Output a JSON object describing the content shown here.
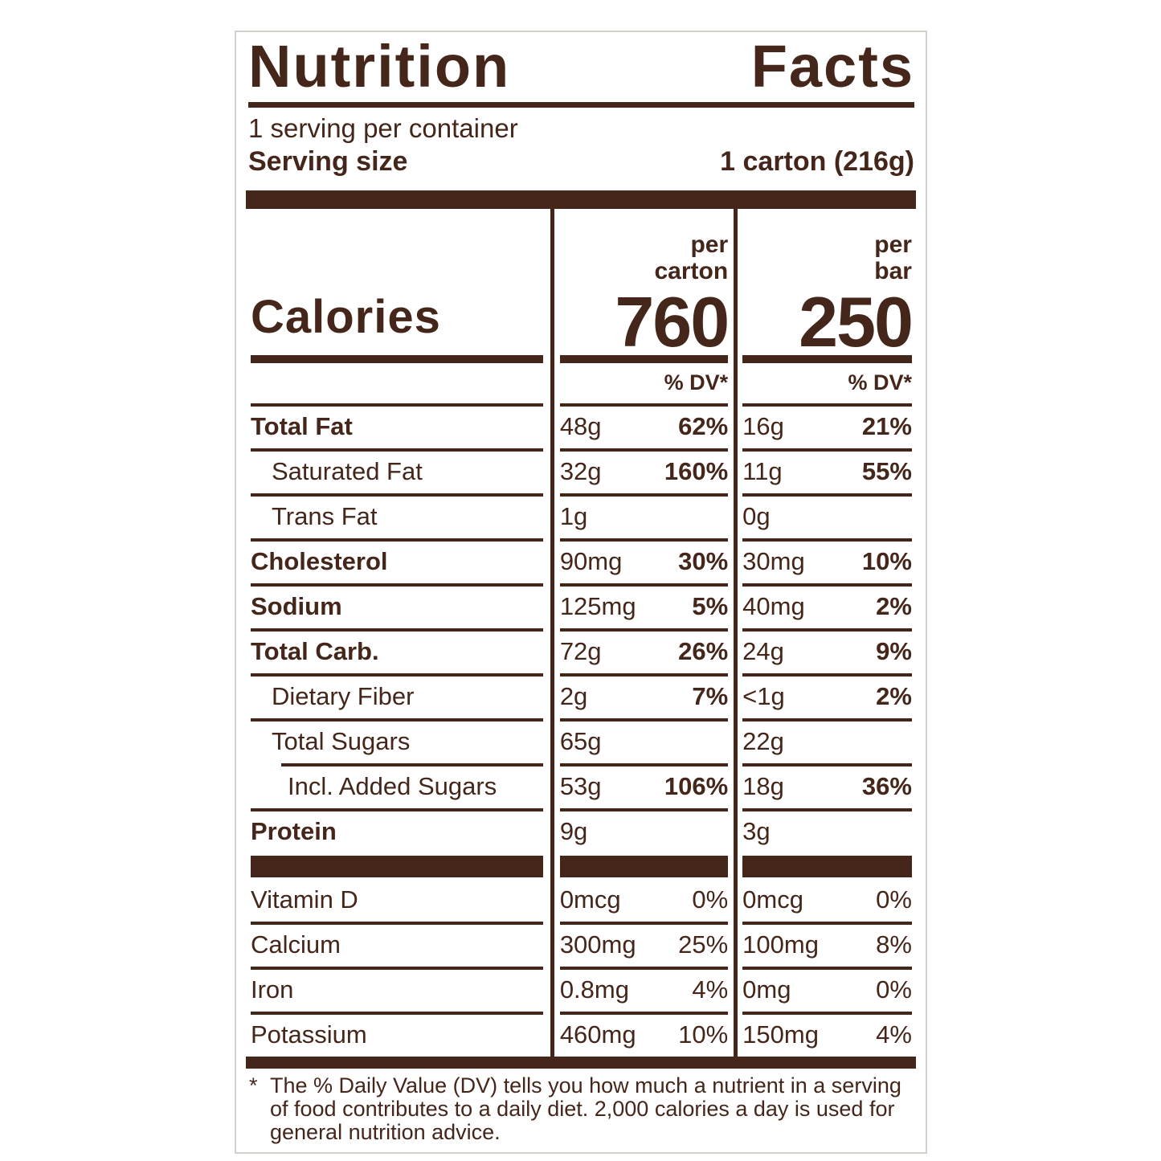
{
  "colors": {
    "ink": "#45261a",
    "label_border": "#d3cfca",
    "page_background": "#ffffff"
  },
  "label": {
    "title": "Nutrition Facts",
    "servings_per_container": "1 serving per container",
    "serving_size": {
      "label": "Serving size",
      "value": "1 carton (216g)"
    },
    "calories": {
      "label": "Calories",
      "columns": [
        {
          "unit_line1": "per",
          "unit_line2": "carton",
          "value": "760",
          "dv_header": "% DV*"
        },
        {
          "unit_line1": "per",
          "unit_line2": "bar",
          "value": "250",
          "dv_header": "% DV*"
        }
      ]
    },
    "rows": [
      {
        "name": "Total Fat",
        "bold": true,
        "indent": 0,
        "rule_indent": false,
        "carton": [
          "48g",
          "62%"
        ],
        "bar": [
          "16g",
          "21%"
        ],
        "dv_bold": true
      },
      {
        "name": "Saturated Fat",
        "bold": false,
        "indent": 1,
        "rule_indent": false,
        "carton": [
          "32g",
          "160%"
        ],
        "bar": [
          "11g",
          "55%"
        ],
        "dv_bold": true
      },
      {
        "name": "Trans Fat",
        "bold": false,
        "indent": 1,
        "rule_indent": false,
        "carton": [
          "1g",
          ""
        ],
        "bar": [
          "0g",
          ""
        ],
        "dv_bold": false
      },
      {
        "name": "Cholesterol",
        "bold": true,
        "indent": 0,
        "rule_indent": false,
        "carton": [
          "90mg",
          "30%"
        ],
        "bar": [
          "30mg",
          "10%"
        ],
        "dv_bold": true
      },
      {
        "name": "Sodium",
        "bold": true,
        "indent": 0,
        "rule_indent": false,
        "carton": [
          "125mg",
          "5%"
        ],
        "bar": [
          "40mg",
          "2%"
        ],
        "dv_bold": true
      },
      {
        "name": "Total Carb.",
        "bold": true,
        "indent": 0,
        "rule_indent": false,
        "carton": [
          "72g",
          "26%"
        ],
        "bar": [
          "24g",
          "9%"
        ],
        "dv_bold": true
      },
      {
        "name": "Dietary Fiber",
        "bold": false,
        "indent": 1,
        "rule_indent": false,
        "carton": [
          "2g",
          "7%"
        ],
        "bar": [
          "<1g",
          "2%"
        ],
        "dv_bold": true
      },
      {
        "name": "Total Sugars",
        "bold": false,
        "indent": 1,
        "rule_indent": false,
        "carton": [
          "65g",
          ""
        ],
        "bar": [
          "22g",
          ""
        ],
        "dv_bold": false
      },
      {
        "name": "Incl. Added Sugars",
        "bold": false,
        "indent": 2,
        "rule_indent": true,
        "carton": [
          "53g",
          "106%"
        ],
        "bar": [
          "18g",
          "36%"
        ],
        "dv_bold": true
      },
      {
        "name": "Protein",
        "bold": true,
        "indent": 0,
        "rule_indent": false,
        "carton": [
          "9g",
          ""
        ],
        "bar": [
          "3g",
          ""
        ],
        "dv_bold": false
      }
    ],
    "vitamins": [
      {
        "name": "Vitamin D",
        "carton": [
          "0mcg",
          "0%"
        ],
        "bar": [
          "0mcg",
          "0%"
        ]
      },
      {
        "name": "Calcium",
        "carton": [
          "300mg",
          "25%"
        ],
        "bar": [
          "100mg",
          "8%"
        ]
      },
      {
        "name": "Iron",
        "carton": [
          "0.8mg",
          "4%"
        ],
        "bar": [
          "0mg",
          "0%"
        ]
      },
      {
        "name": "Potassium",
        "carton": [
          "460mg",
          "10%"
        ],
        "bar": [
          "150mg",
          "4%"
        ]
      }
    ],
    "footnote": {
      "marker": "*",
      "text": "The % Daily Value (DV) tells you how much a nutrient in a serving of food contributes to a daily diet. 2,000 calories a day is used for general nutrition advice."
    }
  }
}
